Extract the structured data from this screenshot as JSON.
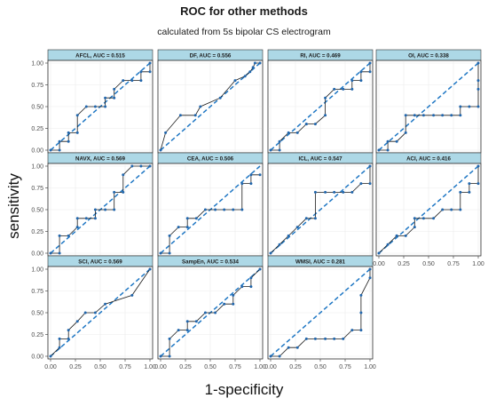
{
  "title": "ROC for other methods",
  "subtitle": "calculated from 5s bipolar CS electrogram",
  "xlabel": "1-specificity",
  "ylabel": "sensitivity",
  "colors": {
    "line": "#2166ac",
    "strip": "#add8e6",
    "grid": "#ebebeb",
    "diag": "#1f77c4"
  },
  "chart_data": {
    "type": "line",
    "title": "ROC for other methods",
    "subtitle": "calculated from 5s bipolar CS electrogram",
    "xlabel": "1-specificity",
    "ylabel": "sensitivity",
    "xlim": [
      0,
      1
    ],
    "ylim": [
      0,
      1
    ],
    "xticks": [
      "0.00",
      "0.25",
      "0.50",
      "0.75",
      "1.00"
    ],
    "yticks": [
      "0.00",
      "0.25",
      "0.50",
      "0.75",
      "1.00"
    ],
    "reference_line": "diagonal dashed",
    "grid": true,
    "panels": [
      {
        "label": "AFCL, AUC = 0.515",
        "x": [
          0,
          0.09,
          0.09,
          0.18,
          0.18,
          0.27,
          0.27,
          0.36,
          0.45,
          0.55,
          0.55,
          0.64,
          0.64,
          0.73,
          0.82,
          0.91,
          0.91,
          1,
          1
        ],
        "y": [
          0,
          0,
          0.1,
          0.1,
          0.2,
          0.2,
          0.4,
          0.5,
          0.5,
          0.5,
          0.6,
          0.6,
          0.7,
          0.8,
          0.8,
          0.8,
          0.9,
          0.9,
          1
        ]
      },
      {
        "label": "DF, AUC = 0.556",
        "x": [
          0,
          0.05,
          0.2,
          0.35,
          0.4,
          0.6,
          0.75,
          0.85,
          0.9,
          0.93,
          0.95,
          1
        ],
        "y": [
          0,
          0.2,
          0.4,
          0.4,
          0.5,
          0.6,
          0.8,
          0.85,
          0.9,
          0.95,
          1,
          1
        ]
      },
      {
        "label": "RI, AUC = 0.469",
        "x": [
          0,
          0.09,
          0.09,
          0.18,
          0.27,
          0.36,
          0.36,
          0.45,
          0.55,
          0.55,
          0.64,
          0.73,
          0.82,
          0.82,
          0.91,
          0.91,
          1,
          1
        ],
        "y": [
          0,
          0,
          0.1,
          0.2,
          0.2,
          0.3,
          0.3,
          0.3,
          0.4,
          0.6,
          0.7,
          0.7,
          0.7,
          0.8,
          0.8,
          0.9,
          0.9,
          1
        ]
      },
      {
        "label": "OI, AUC = 0.338",
        "x": [
          0,
          0.09,
          0.09,
          0.18,
          0.27,
          0.27,
          0.36,
          0.45,
          0.55,
          0.64,
          0.73,
          0.82,
          0.82,
          0.91,
          1,
          1,
          1,
          1
        ],
        "y": [
          0,
          0,
          0.1,
          0.1,
          0.2,
          0.4,
          0.4,
          0.4,
          0.4,
          0.4,
          0.4,
          0.4,
          0.5,
          0.5,
          0.5,
          0.7,
          0.8,
          1
        ]
      },
      {
        "label": "NAVX, AUC = 0.569",
        "x": [
          0,
          0.09,
          0.09,
          0.18,
          0.27,
          0.27,
          0.36,
          0.45,
          0.45,
          0.55,
          0.64,
          0.64,
          0.73,
          0.73,
          0.82,
          0.91,
          1
        ],
        "y": [
          0,
          0,
          0.2,
          0.2,
          0.3,
          0.4,
          0.4,
          0.4,
          0.5,
          0.5,
          0.5,
          0.7,
          0.7,
          0.9,
          1,
          1,
          1
        ]
      },
      {
        "label": "CEA, AUC = 0.506",
        "x": [
          0,
          0.09,
          0.09,
          0.18,
          0.27,
          0.27,
          0.36,
          0.45,
          0.55,
          0.64,
          0.73,
          0.82,
          0.82,
          0.91,
          0.91,
          1
        ],
        "y": [
          0,
          0,
          0.2,
          0.3,
          0.3,
          0.4,
          0.4,
          0.5,
          0.5,
          0.5,
          0.5,
          0.5,
          0.8,
          0.8,
          0.9,
          0.9
        ]
      },
      {
        "label": "ICL, AUC = 0.547",
        "x": [
          0,
          0.09,
          0.18,
          0.27,
          0.36,
          0.45,
          0.45,
          0.55,
          0.64,
          0.73,
          0.82,
          0.91,
          1,
          1
        ],
        "y": [
          0,
          0.1,
          0.2,
          0.3,
          0.4,
          0.4,
          0.7,
          0.7,
          0.7,
          0.7,
          0.7,
          0.8,
          0.8,
          1
        ]
      },
      {
        "label": "ACI, AUC = 0.416",
        "x": [
          0,
          0.09,
          0.18,
          0.18,
          0.27,
          0.36,
          0.36,
          0.45,
          0.55,
          0.64,
          0.73,
          0.82,
          0.82,
          0.91,
          0.91,
          1,
          1
        ],
        "y": [
          0,
          0.1,
          0.2,
          0.2,
          0.2,
          0.3,
          0.4,
          0.4,
          0.4,
          0.5,
          0.5,
          0.5,
          0.7,
          0.7,
          0.8,
          0.8,
          1
        ]
      },
      {
        "label": "SCI, AUC = 0.569",
        "x": [
          0,
          0.09,
          0.09,
          0.18,
          0.18,
          0.27,
          0.35,
          0.45,
          0.55,
          0.82,
          1
        ],
        "y": [
          0,
          0.1,
          0.2,
          0.2,
          0.3,
          0.4,
          0.5,
          0.5,
          0.6,
          0.7,
          1
        ]
      },
      {
        "label": "SampEn, AUC = 0.534",
        "x": [
          0,
          0.09,
          0.09,
          0.18,
          0.27,
          0.27,
          0.36,
          0.45,
          0.55,
          0.64,
          0.73,
          0.73,
          0.82,
          0.91,
          0.91,
          1
        ],
        "y": [
          0,
          0,
          0.2,
          0.3,
          0.3,
          0.4,
          0.4,
          0.5,
          0.5,
          0.6,
          0.6,
          0.7,
          0.8,
          0.8,
          0.9,
          1
        ]
      },
      {
        "label": "WMSI, AUC = 0.281",
        "x": [
          0,
          0.09,
          0.18,
          0.27,
          0.36,
          0.45,
          0.55,
          0.64,
          0.73,
          0.82,
          0.91,
          0.91,
          0.91,
          1,
          1
        ],
        "y": [
          0,
          0,
          0.1,
          0.1,
          0.2,
          0.2,
          0.2,
          0.2,
          0.2,
          0.3,
          0.3,
          0.5,
          0.7,
          0.9,
          1
        ]
      }
    ]
  }
}
